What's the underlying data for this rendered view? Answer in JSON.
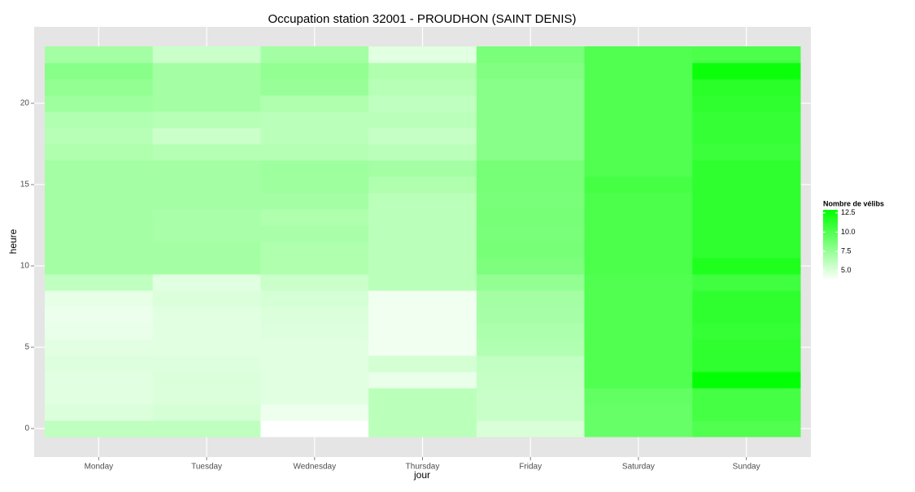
{
  "chart_data": {
    "type": "heatmap",
    "title": "Occupation station 32001 - PROUDHON (SAINT DENIS)",
    "xlabel": "jour",
    "ylabel": "heure",
    "categories": [
      "Monday",
      "Tuesday",
      "Wednesday",
      "Thursday",
      "Friday",
      "Saturday",
      "Sunday"
    ],
    "y": [
      0,
      1,
      2,
      3,
      4,
      5,
      6,
      7,
      8,
      9,
      10,
      11,
      12,
      13,
      14,
      15,
      16,
      17,
      18,
      19,
      20,
      21,
      22,
      23
    ],
    "values": [
      [
        6,
        5,
        4.8,
        4.8,
        4.9,
        4.7,
        4.5,
        4.4,
        4.6,
        6,
        7,
        7,
        7,
        7,
        7,
        7,
        7,
        6.6,
        6.3,
        6.5,
        7.2,
        7.6,
        8,
        7
      ],
      [
        6,
        5.2,
        5,
        5,
        4.9,
        4.8,
        4.8,
        4.8,
        5,
        4.8,
        7,
        7,
        6.8,
        6.8,
        7,
        7,
        7,
        6.4,
        5.6,
        6.3,
        7,
        7,
        7,
        5.6
      ],
      [
        3.7,
        4.3,
        4.8,
        4.8,
        4.8,
        4.8,
        4.9,
        5,
        5.2,
        5.6,
        6.6,
        6.6,
        6.8,
        6.6,
        7,
        7.2,
        7.2,
        6.4,
        6.2,
        6.2,
        6.6,
        7.4,
        7.6,
        7
      ],
      [
        6.2,
        6.2,
        6.2,
        4.5,
        5.3,
        4.2,
        4.2,
        4.2,
        4.2,
        6.2,
        6.2,
        6.2,
        6.2,
        6.2,
        6.2,
        6.6,
        7,
        6.2,
        5.8,
        6.2,
        6,
        6.3,
        6.6,
        4.8
      ],
      [
        5.1,
        5.7,
        5.7,
        5.8,
        5.9,
        6.5,
        6.7,
        6.9,
        7,
        7.6,
        8.4,
        8.6,
        8.5,
        8.6,
        8.5,
        8.6,
        8.6,
        8,
        8,
        8,
        8,
        8,
        8.2,
        8.5
      ],
      [
        9.2,
        9.2,
        9.4,
        10,
        10,
        10,
        10,
        10,
        10,
        10,
        10.2,
        10.2,
        10.2,
        10.2,
        10.2,
        10.4,
        10,
        10,
        10,
        10,
        10,
        10,
        10,
        10
      ],
      [
        10,
        10.4,
        10.4,
        12.8,
        11.2,
        11.2,
        11,
        11.2,
        11.2,
        10.6,
        11.8,
        11.2,
        11.2,
        11.2,
        11.2,
        11.2,
        11.2,
        10.8,
        11,
        11,
        11.2,
        11.4,
        12.5,
        10.2
      ]
    ],
    "ylim": [
      -1.75,
      24.7
    ],
    "yticks": [
      0,
      5,
      10,
      15,
      20
    ],
    "legend_title": "Nombre de vélibs",
    "colorlim": [
      3.7,
      12.9
    ],
    "color_low": "#ffffff",
    "color_high": "#00ff00",
    "colorticks": [
      {
        "value": 5,
        "label": "5.0"
      },
      {
        "value": 7.5,
        "label": "7.5"
      },
      {
        "value": 10,
        "label": "10.0"
      },
      {
        "value": 12.5,
        "label": "12.5"
      }
    ],
    "grid": true
  }
}
